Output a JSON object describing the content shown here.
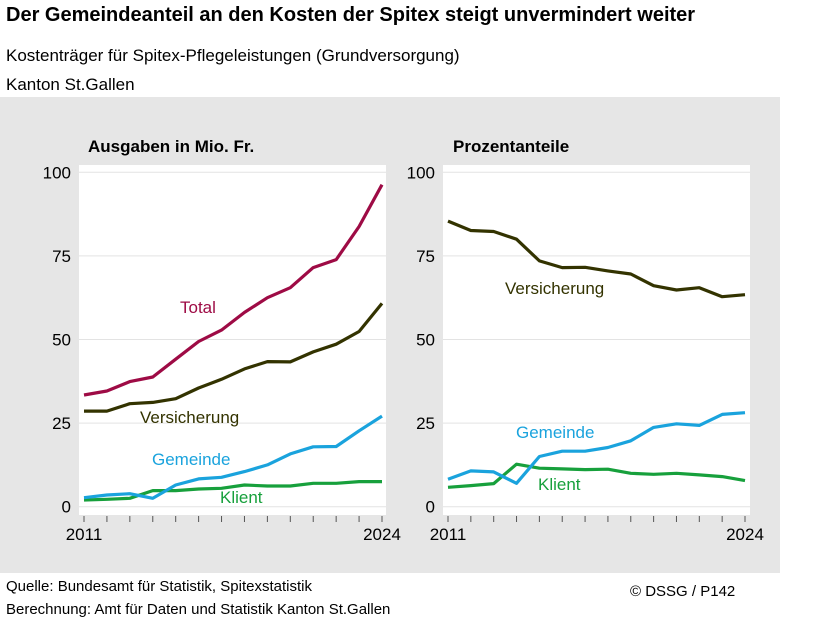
{
  "title": "Der Gemeindeanteil an den Kosten der Spitex steigt unvermindert weiter",
  "subtitle": "Kostenträger für Spitex-Pflegeleistungen (Grundversorgung)",
  "region": "Kanton St.Gallen",
  "source": "Quelle: Bundesamt für Statistik, Spitexstatistik",
  "calculation": "Berechnung: Amt für Daten und Statistik Kanton St.Gallen",
  "copyright": "© DSSG / P142",
  "colors": {
    "Total": "#9e0b45",
    "Versicherung": "#333300",
    "Gemeinde": "#1aa3dd",
    "Klient": "#17a03c"
  },
  "chart_data": [
    {
      "type": "line",
      "title": "Ausgaben in Mio. Fr.",
      "ylim": [
        0,
        100
      ],
      "yticks": [
        "0",
        "25",
        "50",
        "75",
        "100"
      ],
      "x": [
        2011,
        2012,
        2013,
        2014,
        2015,
        2016,
        2017,
        2018,
        2019,
        2020,
        2021,
        2022,
        2023,
        2024
      ],
      "xtick_labels": [
        "2011",
        "2024"
      ],
      "grid": true,
      "series": [
        {
          "name": "Total",
          "values": [
            33.4,
            34.6,
            37.4,
            38.8,
            44.1,
            49.4,
            52.8,
            58.1,
            62.5,
            65.5,
            71.5,
            73.9,
            83.8,
            96.3
          ]
        },
        {
          "name": "Versicherung",
          "values": [
            28.6,
            28.6,
            30.8,
            31.2,
            32.3,
            35.5,
            38.1,
            41.2,
            43.4,
            43.3,
            46.3,
            48.6,
            52.4,
            60.8
          ]
        },
        {
          "name": "Gemeinde",
          "values": [
            2.7,
            3.5,
            3.9,
            2.5,
            6.5,
            8.3,
            8.8,
            10.5,
            12.5,
            15.8,
            17.9,
            18.0,
            22.7,
            27.1
          ]
        },
        {
          "name": "Klient",
          "values": [
            2.0,
            2.2,
            2.5,
            4.8,
            4.8,
            5.3,
            5.5,
            6.5,
            6.2,
            6.2,
            7.0,
            7.0,
            7.5,
            7.5
          ]
        }
      ]
    },
    {
      "type": "line",
      "title": "Prozentanteile",
      "ylim": [
        0,
        100
      ],
      "yticks": [
        "0",
        "25",
        "50",
        "75",
        "100"
      ],
      "x": [
        2011,
        2012,
        2013,
        2014,
        2015,
        2016,
        2017,
        2018,
        2019,
        2020,
        2021,
        2022,
        2023,
        2024
      ],
      "xtick_labels": [
        "2011",
        "2024"
      ],
      "grid": true,
      "series": [
        {
          "name": "Versicherung",
          "values": [
            85.4,
            82.6,
            82.3,
            80.0,
            73.5,
            71.5,
            71.6,
            70.5,
            69.6,
            66.1,
            64.8,
            65.5,
            62.8,
            63.4
          ]
        },
        {
          "name": "Gemeinde",
          "values": [
            8.2,
            10.7,
            10.4,
            7.0,
            15.0,
            16.6,
            16.6,
            17.7,
            19.7,
            23.7,
            24.8,
            24.3,
            27.6,
            28.1
          ]
        },
        {
          "name": "Klient",
          "values": [
            5.8,
            6.3,
            6.9,
            12.7,
            11.5,
            11.3,
            11.1,
            11.2,
            10.0,
            9.7,
            10.0,
            9.5,
            9.0,
            7.8
          ]
        }
      ]
    }
  ]
}
